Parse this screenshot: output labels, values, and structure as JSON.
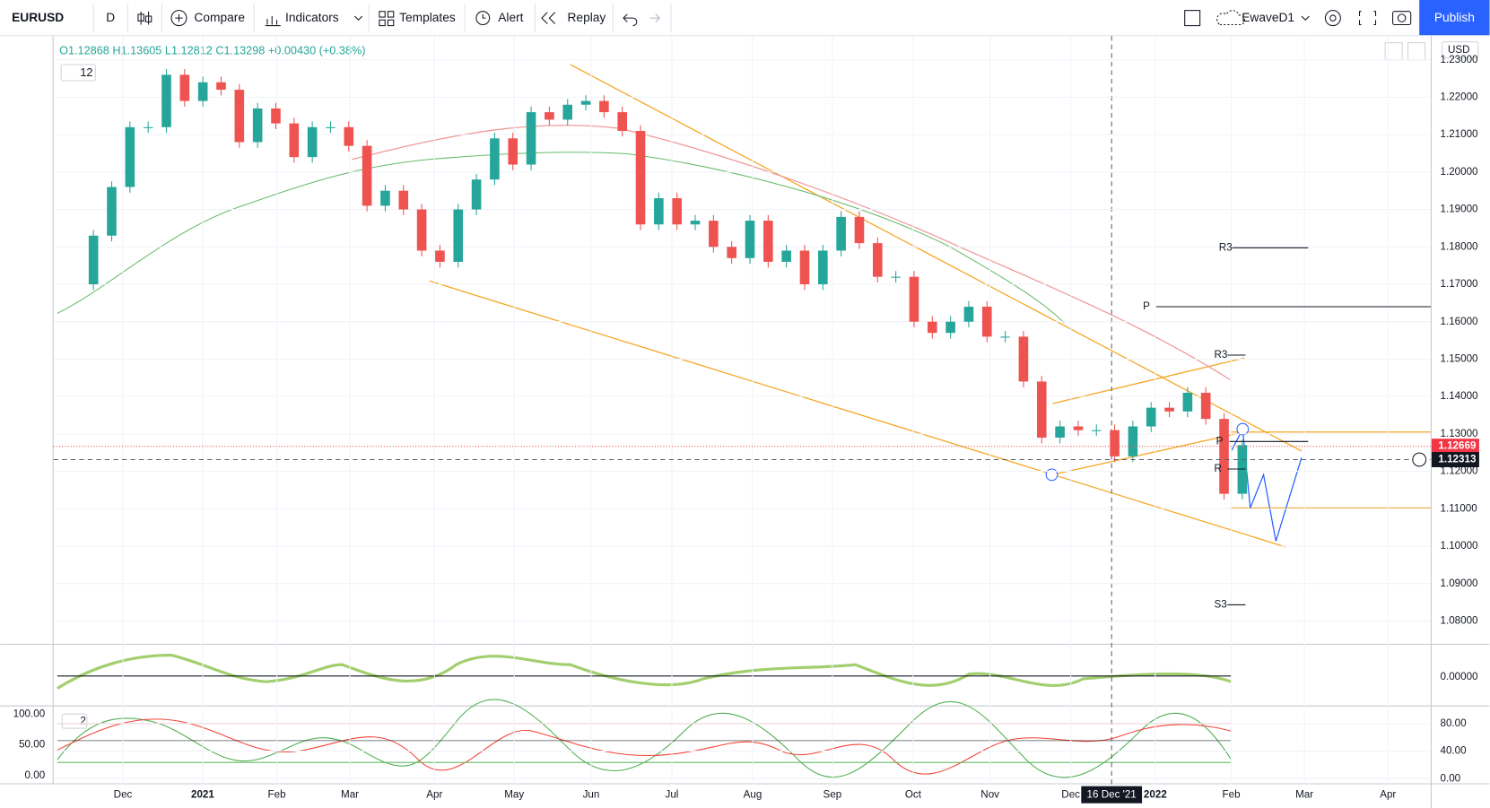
{
  "toolbar": {
    "symbol": "EURUSD",
    "interval": "D",
    "buttons": [
      "Compare",
      "Indicators",
      "Templates",
      "Alert",
      "Replay"
    ],
    "layout": "EwaveD1",
    "publish": "Publish"
  },
  "legend": {
    "ohlc": "O1.12868 H1.13605 L1.12812 C1.13298 +0.00430 (+0.38%)",
    "badge": "12"
  },
  "chart": {
    "currency": "USD",
    "yticks": [
      {
        "value": 1.08,
        "label": "1.08000"
      },
      {
        "value": 1.09,
        "label": "1.09000"
      },
      {
        "value": 1.1,
        "label": "1.10000"
      },
      {
        "value": 1.11,
        "label": "1.11000"
      },
      {
        "value": 1.12,
        "label": "1.12000"
      },
      {
        "value": 1.13,
        "label": "1.13000"
      },
      {
        "value": 1.14,
        "label": "1.14000"
      },
      {
        "value": 1.15,
        "label": "1.15000"
      },
      {
        "value": 1.16,
        "label": "1.16000"
      },
      {
        "value": 1.17,
        "label": "1.17000"
      },
      {
        "value": 1.18,
        "label": "1.18000"
      },
      {
        "value": 1.19,
        "label": "1.19000"
      },
      {
        "value": 1.2,
        "label": "1.20000"
      },
      {
        "value": 1.21,
        "label": "1.21000"
      },
      {
        "value": 1.22,
        "label": "1.22000"
      },
      {
        "value": 1.23,
        "label": "1.23000"
      }
    ],
    "open": 1.17,
    "closes": [
      1.183,
      1.196,
      1.212,
      1.212,
      1.226,
      1.219,
      1.224,
      1.222,
      1.208,
      1.217,
      1.213,
      1.204,
      1.212,
      1.212,
      1.207,
      1.191,
      1.195,
      1.19,
      1.179,
      1.176,
      1.19,
      1.198,
      1.209,
      1.202,
      1.216,
      1.214,
      1.218,
      1.219,
      1.216,
      1.211,
      1.186,
      1.193,
      1.186,
      1.187,
      1.18,
      1.177,
      1.187,
      1.176,
      1.179,
      1.17,
      1.179,
      1.188,
      1.181,
      1.172,
      1.172,
      1.16,
      1.157,
      1.16,
      1.164,
      1.156,
      1.156,
      1.144,
      1.129,
      1.132,
      1.131,
      1.131,
      1.124,
      1.132,
      1.137,
      1.136,
      1.141,
      1.134,
      1.114,
      1.127
    ],
    "last_price": {
      "value": 1.12669,
      "label": "1.12669"
    },
    "cursor_price": {
      "value": 1.12313,
      "label": "1.12313"
    },
    "pivots": [
      "R3",
      "P",
      "R3",
      "P",
      "R",
      "S3"
    ],
    "time_labels": [
      "Dec",
      "2021",
      "Feb",
      "Mar",
      "Apr",
      "May",
      "Jun",
      "Jul",
      "Aug",
      "Sep",
      "Oct",
      "Nov",
      "Dec",
      "2022",
      "Feb",
      "Mar",
      "Apr"
    ],
    "cursor_date": "16 Dec '21"
  },
  "osc1": {
    "yticks": [
      {
        "value": 0,
        "label": "0.00000"
      }
    ]
  },
  "osc2": {
    "badge": "2",
    "left_ticks": [
      {
        "value": 100,
        "label": "100.00"
      },
      {
        "value": 50,
        "label": "50.00"
      },
      {
        "value": 0,
        "label": "0.00"
      }
    ],
    "right_ticks": [
      {
        "value": 80,
        "label": "80.00"
      },
      {
        "value": 40,
        "label": "40.00"
      },
      {
        "value": 0,
        "label": "0.00"
      }
    ]
  }
}
